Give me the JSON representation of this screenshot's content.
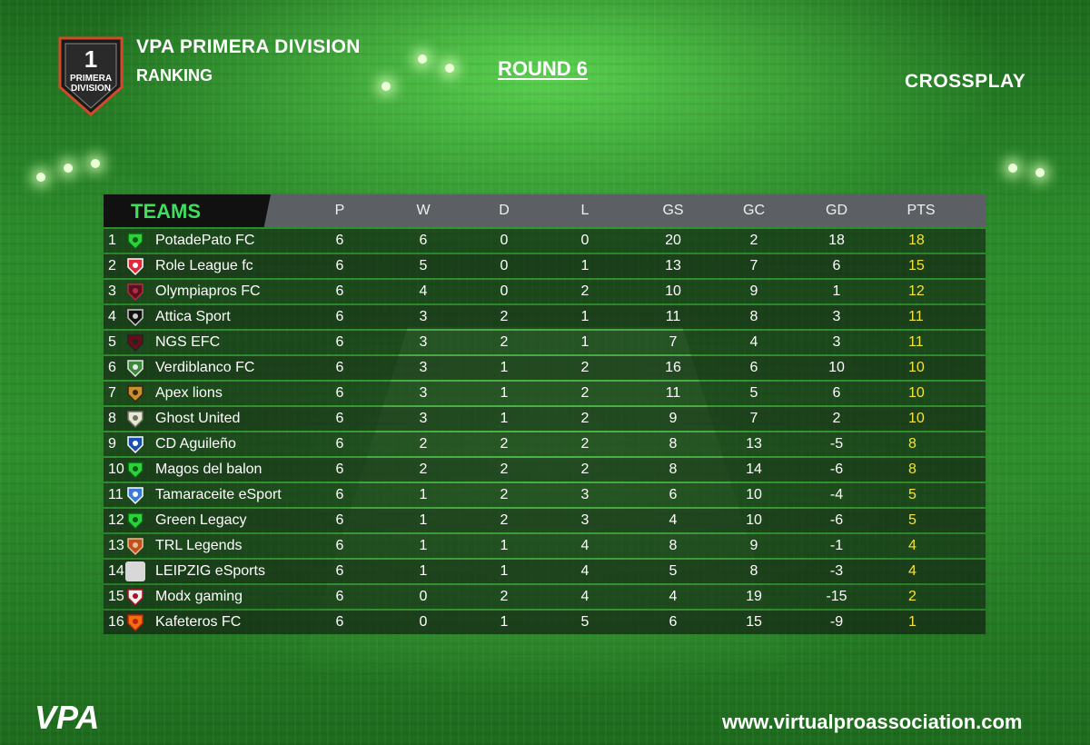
{
  "header": {
    "badge_number": "1",
    "badge_line1": "PRIMERA",
    "badge_line2": "DIVISION",
    "league_title": "VPA PRIMERA DIVISION",
    "subtitle": "RANKING",
    "round": "ROUND 6",
    "platform": "CROSSPLAY"
  },
  "table": {
    "teams_header": "TEAMS",
    "columns": [
      "P",
      "W",
      "D",
      "L",
      "GS",
      "GC",
      "GD",
      "PTS"
    ],
    "rows": [
      {
        "pos": "1",
        "team": "PotadePato FC",
        "logo": "green-shield-icon",
        "p": "6",
        "w": "6",
        "d": "0",
        "l": "0",
        "gs": "20",
        "gc": "2",
        "gd": "18",
        "pts": "18"
      },
      {
        "pos": "2",
        "team": "Role League fc",
        "logo": "red-crest-icon",
        "p": "6",
        "w": "5",
        "d": "0",
        "l": "1",
        "gs": "13",
        "gc": "7",
        "gd": "6",
        "pts": "15"
      },
      {
        "pos": "3",
        "team": "Olympiapros FC",
        "logo": "maroon-crest-icon",
        "p": "6",
        "w": "4",
        "d": "0",
        "l": "2",
        "gs": "10",
        "gc": "9",
        "gd": "1",
        "pts": "12"
      },
      {
        "pos": "4",
        "team": "Attica Sport",
        "logo": "black-shield-icon",
        "p": "6",
        "w": "3",
        "d": "2",
        "l": "1",
        "gs": "11",
        "gc": "8",
        "gd": "3",
        "pts": "11"
      },
      {
        "pos": "5",
        "team": "NGS EFC",
        "logo": "dark-red-shield-icon",
        "p": "6",
        "w": "3",
        "d": "2",
        "l": "1",
        "gs": "7",
        "gc": "4",
        "gd": "3",
        "pts": "11"
      },
      {
        "pos": "6",
        "team": "Verdiblanco FC",
        "logo": "green-white-crest-icon",
        "p": "6",
        "w": "3",
        "d": "1",
        "l": "2",
        "gs": "16",
        "gc": "6",
        "gd": "10",
        "pts": "10"
      },
      {
        "pos": "7",
        "team": "Apex lions",
        "logo": "lion-crest-icon",
        "p": "6",
        "w": "3",
        "d": "1",
        "l": "2",
        "gs": "11",
        "gc": "5",
        "gd": "6",
        "pts": "10"
      },
      {
        "pos": "8",
        "team": "Ghost United",
        "logo": "ghost-crest-icon",
        "p": "6",
        "w": "3",
        "d": "1",
        "l": "2",
        "gs": "9",
        "gc": "7",
        "gd": "2",
        "pts": "10"
      },
      {
        "pos": "9",
        "team": "CD Aguileño",
        "logo": "blue-eagle-crest-icon",
        "p": "6",
        "w": "2",
        "d": "2",
        "l": "2",
        "gs": "8",
        "gc": "13",
        "gd": "-5",
        "pts": "8"
      },
      {
        "pos": "10",
        "team": "Magos del balon",
        "logo": "green-shield-icon",
        "p": "6",
        "w": "2",
        "d": "2",
        "l": "2",
        "gs": "8",
        "gc": "14",
        "gd": "-6",
        "pts": "8"
      },
      {
        "pos": "11",
        "team": "Tamaraceite eSport",
        "logo": "blue-wing-crest-icon",
        "p": "6",
        "w": "1",
        "d": "2",
        "l": "3",
        "gs": "6",
        "gc": "10",
        "gd": "-4",
        "pts": "5"
      },
      {
        "pos": "12",
        "team": "Green Legacy",
        "logo": "green-shield-icon",
        "p": "6",
        "w": "1",
        "d": "2",
        "l": "3",
        "gs": "4",
        "gc": "10",
        "gd": "-6",
        "pts": "5"
      },
      {
        "pos": "13",
        "team": "TRL Legends",
        "logo": "orange-shield-icon",
        "p": "6",
        "w": "1",
        "d": "1",
        "l": "4",
        "gs": "8",
        "gc": "9",
        "gd": "-1",
        "pts": "4"
      },
      {
        "pos": "14",
        "team": "LEIPZIG eSports",
        "logo": "blank-logo-icon",
        "p": "6",
        "w": "1",
        "d": "1",
        "l": "4",
        "gs": "5",
        "gc": "8",
        "gd": "-3",
        "pts": "4"
      },
      {
        "pos": "15",
        "team": "Modx gaming",
        "logo": "red-black-crest-icon",
        "p": "6",
        "w": "0",
        "d": "2",
        "l": "4",
        "gs": "4",
        "gc": "19",
        "gd": "-15",
        "pts": "2"
      },
      {
        "pos": "16",
        "team": "Kafeteros FC",
        "logo": "orange-crest-icon",
        "p": "6",
        "w": "0",
        "d": "1",
        "l": "5",
        "gs": "6",
        "gc": "15",
        "gd": "-9",
        "pts": "1"
      }
    ]
  },
  "footer": {
    "logo_text": "VPA",
    "website": "www.virtualproassociation.com"
  },
  "colors": {
    "teams_header": "#3de05a",
    "points": "#f3e33a",
    "header_bar": "#5c5f63"
  }
}
